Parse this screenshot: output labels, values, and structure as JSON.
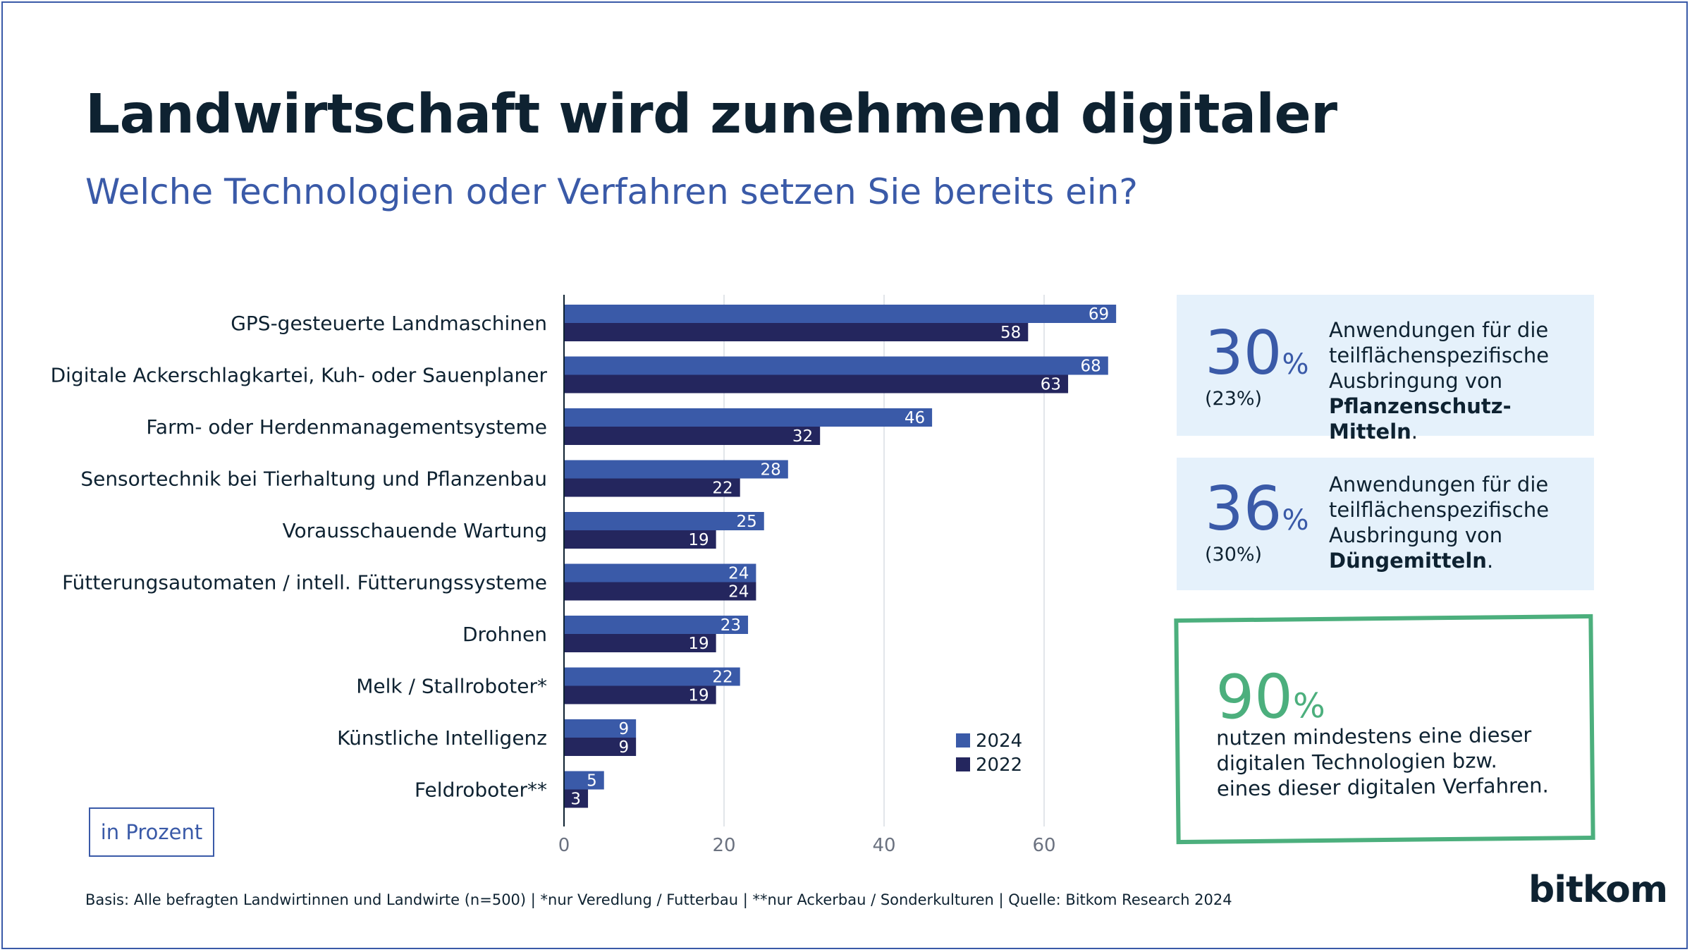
{
  "title": "Landwirtschaft wird zunehmend digitaler",
  "subtitle": "Welche Technologien oder Verfahren setzen Sie bereits ein?",
  "unit_label": "in Prozent",
  "footer": "Basis: Alle befragten Landwirtinnen und Landwirte (n=500) | *nur Veredlung / Futterbau | **nur Ackerbau / Sonderkulturen | Quelle: Bitkom Research 2024",
  "logo_text": "bitkom",
  "callouts": [
    {
      "value": "30",
      "sign": "%",
      "previous": "(23%)",
      "text_plain": "Anwendungen für die teilflächenspezifische Ausbringung von",
      "text_bold": "Pflanzenschutz-Mitteln",
      "text_end": "."
    },
    {
      "value": "36",
      "sign": "%",
      "previous": "(30%)",
      "text_plain": "Anwendungen für die teilflächenspezifische Ausbringung von",
      "text_bold": "Düngemitteln",
      "text_end": "."
    }
  ],
  "highlight": {
    "value": "90",
    "sign": "%",
    "text": "nutzen mindestens eine dieser digitalen Technologien bzw. eines dieser digitalen Verfahren."
  },
  "colors": {
    "series_2024": "#3a5aa8",
    "series_2022": "#24265e",
    "accent_green": "#4caf7d",
    "callout_bg": "#e5f1fb",
    "title": "#0e2231"
  },
  "chart_data": {
    "type": "bar",
    "orientation": "horizontal",
    "categories": [
      "GPS-gesteuerte Landmaschinen",
      "Digitale Ackerschlagkartei, Kuh- oder Sauenplaner",
      "Farm- oder Herdenmanagementsysteme",
      "Sensortechnik bei Tierhaltung und Pflanzenbau",
      "Vorausschauende Wartung",
      "Fütterungsautomaten / intell. Fütterungssysteme",
      "Drohnen",
      "Melk / Stallroboter*",
      "Künstliche Intelligenz",
      "Feldroboter**"
    ],
    "series": [
      {
        "name": "2024",
        "values": [
          69,
          68,
          46,
          28,
          25,
          24,
          23,
          22,
          9,
          5
        ]
      },
      {
        "name": "2022",
        "values": [
          58,
          63,
          32,
          22,
          19,
          24,
          19,
          19,
          9,
          3
        ]
      }
    ],
    "xlim": [
      0,
      70
    ],
    "xticks": [
      0,
      20,
      40,
      60
    ],
    "grid": true,
    "legend_position": "bottom-right"
  }
}
